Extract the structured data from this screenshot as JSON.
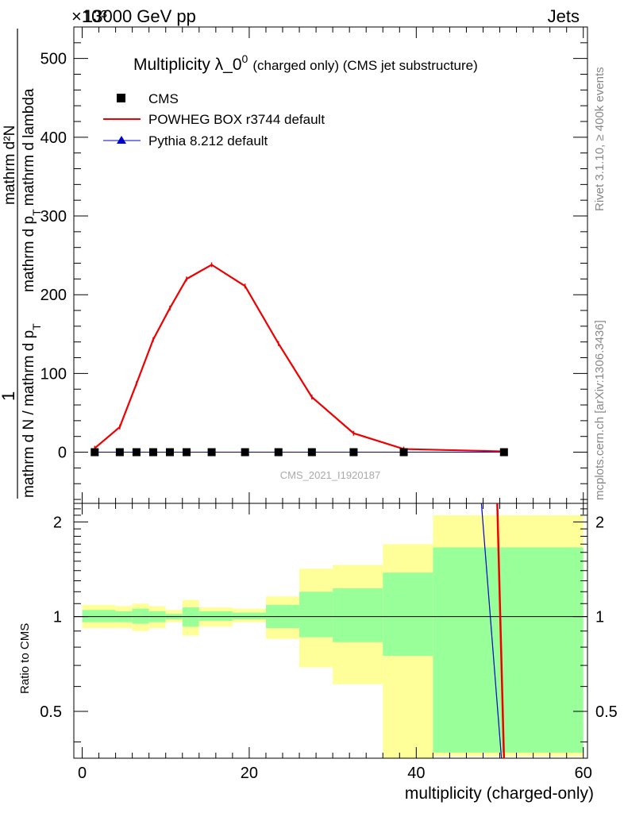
{
  "header": {
    "left": "13000 GeV pp",
    "right": "Jets",
    "exponent": "×10³"
  },
  "side_text": {
    "rivet": "Rivet 3.1.10, ≥ 400k events",
    "mcplots": "mcplots.cern.ch [arXiv:1306.3436]"
  },
  "analysis_id": "CMS_2021_I1920187",
  "main_title": {
    "prefix": "Multiplicity λ_0",
    "superscript": "0",
    "suffix": "(charged only) (CMS jet substructure)"
  },
  "y_axis_label": {
    "numerator": "1",
    "denominator": "mathrm d N / mathrm d p",
    "denominator_sub": "T",
    "numerator2": "mathrm d²N",
    "denominator2": "mathrm d p",
    "denominator2_sub": "T",
    "denominator2_tail": "mathrm d lambda"
  },
  "ratio_y_label": "Ratio to CMS",
  "x_axis_label": "multiplicity (charged-only)",
  "legend": [
    {
      "label": "CMS",
      "color": "#000000",
      "marker": "square"
    },
    {
      "label": "POWHEG BOX r3744 default",
      "color": "#ee0000",
      "marker": "line"
    },
    {
      "label": "Pythia 8.212 default",
      "color": "#0000cc",
      "marker": "triangle"
    }
  ],
  "chart_data": [
    {
      "type": "line",
      "panel": "main",
      "ylim": [
        -65,
        540
      ],
      "xlim": [
        -1,
        60.5
      ],
      "yticks": [
        0,
        100,
        200,
        300,
        400,
        500
      ],
      "ytick_labels": [
        "0",
        "100",
        "200",
        "300",
        "400",
        "500"
      ],
      "series": [
        {
          "name": "CMS",
          "color": "#000000",
          "x": [
            1.5,
            4.5,
            6.5,
            8.5,
            10.5,
            12.5,
            15.5,
            19.5,
            23.5,
            27.5,
            32.5,
            38.5,
            50.5
          ],
          "y": [
            0,
            0,
            0,
            0,
            0,
            0,
            0,
            0,
            0,
            0,
            0,
            0,
            0
          ]
        },
        {
          "name": "POWHEG BOX r3744 default",
          "color": "#ee0000",
          "x": [
            1.5,
            4.5,
            6.5,
            8.5,
            10.5,
            12.5,
            15.5,
            19.5,
            23.5,
            27.5,
            32.5,
            38.5,
            50.5
          ],
          "y": [
            5,
            32,
            87,
            143,
            183,
            220,
            238,
            211,
            138,
            70,
            24,
            4,
            1
          ]
        },
        {
          "name": "Pythia 8.212 default",
          "color": "#0000cc",
          "x": [
            1.5,
            4.5,
            6.5,
            8.5,
            10.5,
            12.5,
            15.5,
            19.5,
            23.5,
            27.5,
            32.5,
            38.5,
            50.5
          ],
          "y": [
            0,
            0,
            0,
            0,
            0,
            0,
            0,
            0,
            0,
            0,
            0,
            0,
            0
          ]
        }
      ]
    },
    {
      "type": "line",
      "panel": "ratio",
      "ylabel": "Ratio to CMS",
      "xlabel": "multiplicity (charged-only)",
      "ylim": [
        0.355,
        2.29
      ],
      "xlim": [
        -1,
        60.5
      ],
      "xticks": [
        0,
        20,
        40,
        60
      ],
      "xtick_labels": [
        "0",
        "20",
        "40",
        "60"
      ],
      "yticks": [
        0.5,
        1,
        2
      ],
      "ytick_labels": [
        "0.5",
        "1",
        "2"
      ],
      "bands": [
        {
          "x0": 0,
          "x1": 4,
          "stat_lo": 0.96,
          "stat_hi": 1.05,
          "tot_lo": 0.92,
          "tot_hi": 1.09
        },
        {
          "x0": 4,
          "x1": 6,
          "stat_lo": 0.96,
          "stat_hi": 1.04,
          "tot_lo": 0.92,
          "tot_hi": 1.08
        },
        {
          "x0": 6,
          "x1": 8,
          "stat_lo": 0.95,
          "stat_hi": 1.06,
          "tot_lo": 0.9,
          "tot_hi": 1.1
        },
        {
          "x0": 8,
          "x1": 10,
          "stat_lo": 0.96,
          "stat_hi": 1.04,
          "tot_lo": 0.92,
          "tot_hi": 1.08
        },
        {
          "x0": 10,
          "x1": 12,
          "stat_lo": 0.98,
          "stat_hi": 1.02,
          "tot_lo": 0.96,
          "tot_hi": 1.05
        },
        {
          "x0": 12,
          "x1": 14,
          "stat_lo": 0.93,
          "stat_hi": 1.07,
          "tot_lo": 0.87,
          "tot_hi": 1.13
        },
        {
          "x0": 14,
          "x1": 18,
          "stat_lo": 0.97,
          "stat_hi": 1.04,
          "tot_lo": 0.93,
          "tot_hi": 1.07
        },
        {
          "x0": 18,
          "x1": 22,
          "stat_lo": 0.98,
          "stat_hi": 1.03,
          "tot_lo": 0.96,
          "tot_hi": 1.06
        },
        {
          "x0": 22,
          "x1": 26,
          "stat_lo": 0.92,
          "stat_hi": 1.09,
          "tot_lo": 0.85,
          "tot_hi": 1.16
        },
        {
          "x0": 26,
          "x1": 30,
          "stat_lo": 0.86,
          "stat_hi": 1.2,
          "tot_lo": 0.69,
          "tot_hi": 1.42
        },
        {
          "x0": 30,
          "x1": 36,
          "stat_lo": 0.83,
          "stat_hi": 1.23,
          "tot_lo": 0.61,
          "tot_hi": 1.46
        },
        {
          "x0": 36,
          "x1": 42,
          "stat_lo": 0.75,
          "stat_hi": 1.38,
          "tot_lo": 0.3,
          "tot_hi": 1.7
        },
        {
          "x0": 42,
          "x1": 60,
          "stat_lo": 0.37,
          "stat_hi": 1.66,
          "tot_lo": 0.36,
          "tot_hi": 2.1
        }
      ],
      "series": [
        {
          "name": "POWHEG BOX r3744 default",
          "color": "#ee0000",
          "x": [
            49.7,
            50.5
          ],
          "y": [
            2.29,
            0.355
          ]
        },
        {
          "name": "Pythia 8.212 default",
          "color": "#0000cc",
          "x": [
            47.8,
            50.2
          ],
          "y": [
            2.29,
            0.355
          ]
        }
      ]
    }
  ]
}
